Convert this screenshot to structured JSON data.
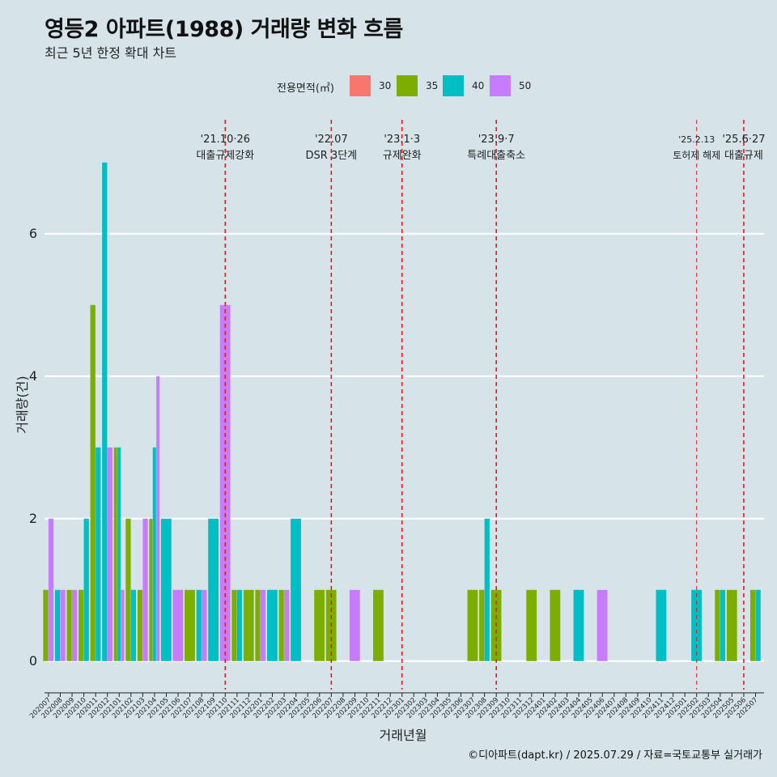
{
  "title": "영등2 아파트(1988) 거래량 변화 흐름",
  "subtitle": "최근 5년 한정 확대 차트",
  "footer": "©디아파트(dapt.kr) / 2025.07.29 / 자료=국토교통부 실거래가",
  "legend": {
    "title": "전용면적(㎡)",
    "items": [
      {
        "label": "30",
        "color": "#f8766d"
      },
      {
        "label": "35",
        "color": "#7cae00"
      },
      {
        "label": "40",
        "color": "#00bfc4"
      },
      {
        "label": "50",
        "color": "#c77cff"
      }
    ]
  },
  "chart_data": {
    "type": "bar",
    "xlabel": "거래년월",
    "ylabel": "거래량(건)",
    "ylim": [
      -0.4,
      7.6
    ],
    "yticks": [
      0,
      2,
      4,
      6
    ],
    "grid": "horizontal",
    "categories": [
      "202007",
      "202008",
      "202009",
      "202010",
      "202011",
      "202012",
      "202101",
      "202102",
      "202103",
      "202104",
      "202105",
      "202106",
      "202107",
      "202108",
      "202109",
      "202110",
      "202111",
      "202112",
      "202201",
      "202202",
      "202203",
      "202204",
      "202205",
      "202206",
      "202207",
      "202208",
      "202209",
      "202210",
      "202211",
      "202212",
      "202301",
      "202302",
      "202303",
      "202304",
      "202305",
      "202306",
      "202307",
      "202308",
      "202309",
      "202310",
      "202311",
      "202312",
      "202401",
      "202402",
      "202403",
      "202404",
      "202405",
      "202406",
      "202407",
      "202408",
      "202409",
      "202410",
      "202411",
      "202412",
      "202501",
      "202502",
      "202503",
      "202504",
      "202505",
      "202506",
      "202507"
    ],
    "series": [
      {
        "name": "30",
        "color": "#f8766d",
        "values": [
          0,
          0,
          0,
          0,
          0,
          0,
          0,
          0,
          0,
          0,
          0,
          0,
          0,
          0,
          0,
          0,
          0,
          0,
          0,
          0,
          0,
          0,
          0,
          0,
          0,
          0,
          0,
          0,
          0,
          0,
          0,
          0,
          0,
          0,
          0,
          0,
          0,
          0,
          0,
          0,
          0,
          0,
          0,
          0,
          0,
          0,
          0,
          0,
          0,
          0,
          0,
          0,
          0,
          0,
          0,
          0,
          0,
          0,
          0,
          0,
          0
        ]
      },
      {
        "name": "35",
        "color": "#7cae00",
        "values": [
          1,
          0,
          1,
          1,
          5,
          0,
          3,
          2,
          1,
          2,
          0,
          0,
          1,
          0,
          0,
          0,
          1,
          1,
          1,
          0,
          1,
          0,
          0,
          1,
          1,
          0,
          0,
          0,
          1,
          0,
          0,
          0,
          0,
          0,
          0,
          0,
          1,
          1,
          1,
          0,
          0,
          1,
          0,
          1,
          0,
          0,
          0,
          0,
          0,
          0,
          0,
          0,
          0,
          0,
          0,
          0,
          0,
          1,
          1,
          0,
          1
        ]
      },
      {
        "name": "40",
        "color": "#00bfc4",
        "values": [
          0,
          1,
          0,
          2,
          3,
          7,
          3,
          1,
          0,
          3,
          2,
          0,
          0,
          1,
          2,
          0,
          1,
          0,
          0,
          1,
          0,
          2,
          0,
          0,
          0,
          0,
          0,
          0,
          0,
          0,
          0,
          0,
          0,
          0,
          0,
          0,
          0,
          2,
          0,
          0,
          0,
          0,
          0,
          0,
          0,
          1,
          0,
          0,
          0,
          0,
          0,
          0,
          1,
          0,
          0,
          1,
          0,
          1,
          0,
          0,
          1
        ]
      },
      {
        "name": "50",
        "color": "#c77cff",
        "values": [
          2,
          1,
          1,
          0,
          0,
          3,
          1,
          0,
          2,
          4,
          0,
          1,
          0,
          1,
          0,
          5,
          0,
          0,
          1,
          0,
          1,
          0,
          0,
          0,
          0,
          0,
          1,
          0,
          0,
          0,
          0,
          0,
          0,
          0,
          0,
          0,
          0,
          0,
          0,
          0,
          0,
          0,
          0,
          0,
          0,
          0,
          0,
          1,
          0,
          0,
          0,
          0,
          0,
          0,
          0,
          0,
          0,
          0,
          0,
          0,
          0
        ]
      }
    ],
    "annotations": [
      {
        "at": "202110",
        "date": "'21.10·26",
        "text": "대출규제강화",
        "style": "dashed"
      },
      {
        "at": "202207",
        "date": "'22.07",
        "text": "DSR 3단계",
        "style": "dashed"
      },
      {
        "at": "202301",
        "date": "'23.1·3",
        "text": "규제완화",
        "style": "dashed"
      },
      {
        "at": "202309",
        "date": "'23.9·7",
        "text": "특례대출축소",
        "style": "dashed"
      },
      {
        "at": "202502",
        "date": "'25.2.13",
        "text": "토허제 해제",
        "style": "thin-dashed"
      },
      {
        "at": "202506",
        "date": "'25.6·27",
        "text": "대출규제",
        "style": "dashed"
      }
    ]
  }
}
